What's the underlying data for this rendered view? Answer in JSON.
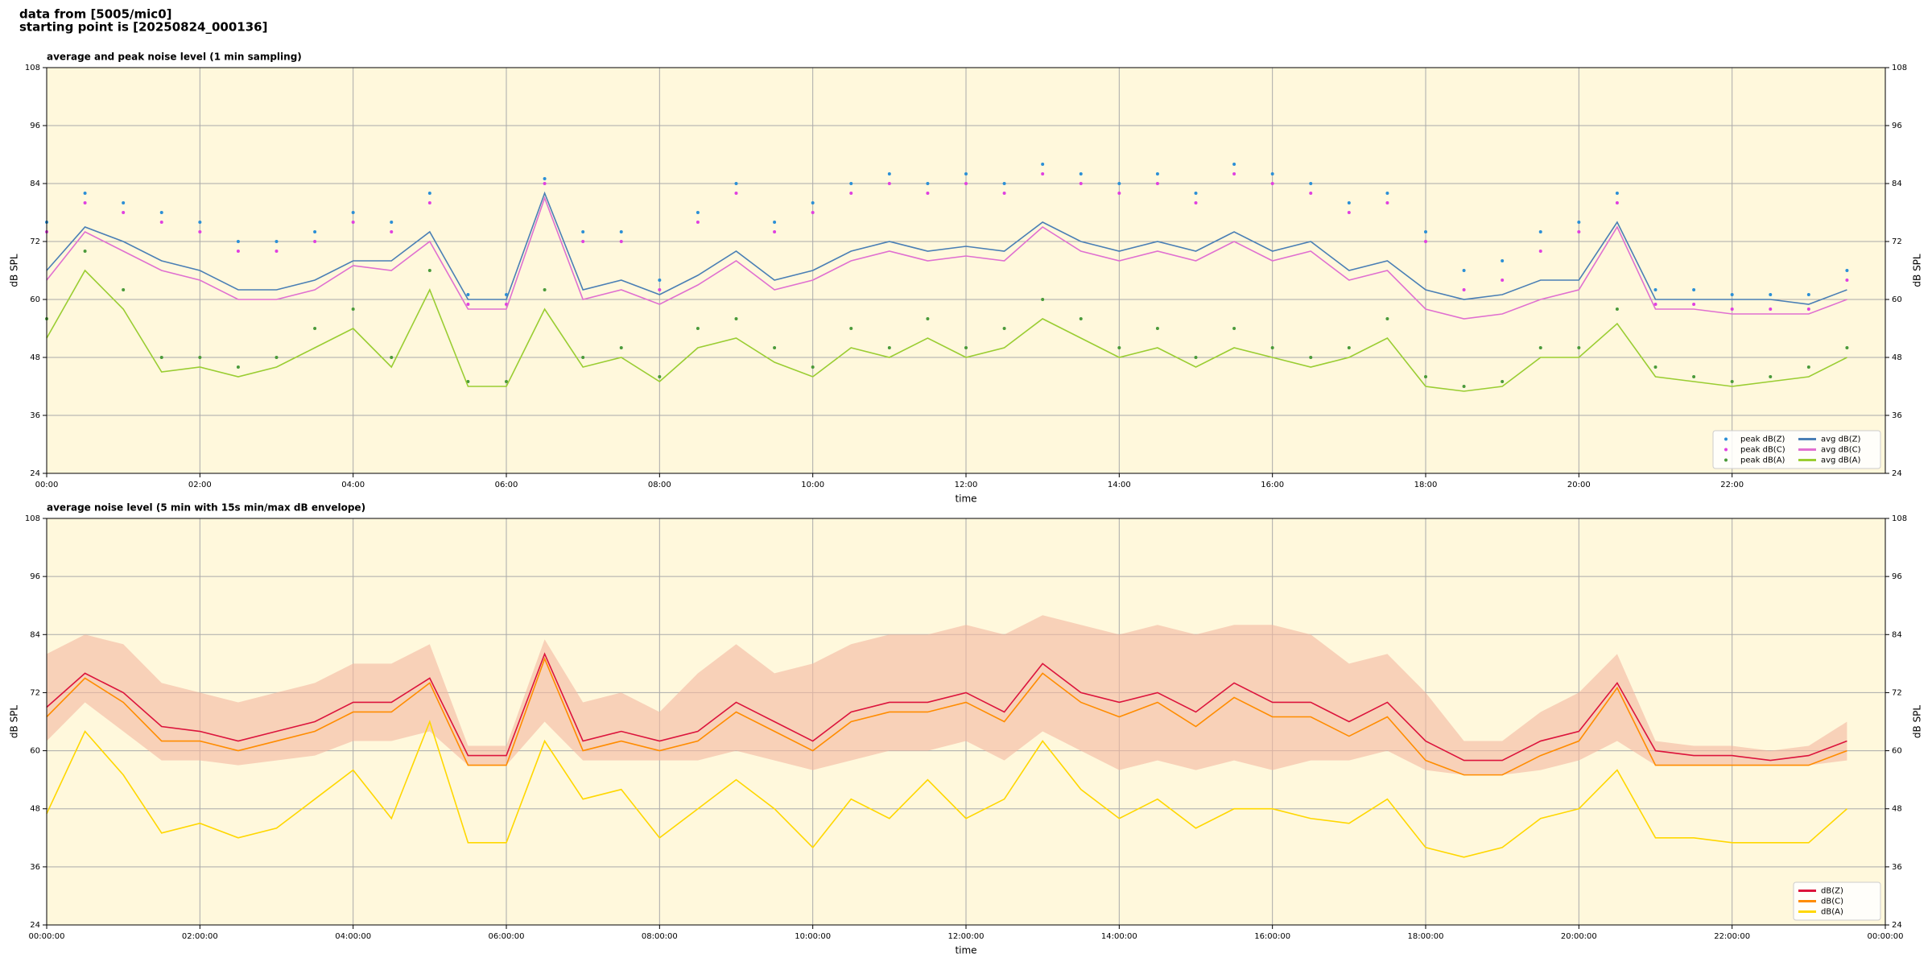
{
  "header": [
    "data from [5005/mic0]",
    "starting point is [20250824_000136]"
  ],
  "chart_data": [
    {
      "type": "line",
      "title": "average and peak noise level (1 min sampling)",
      "xlabel": "time",
      "ylabel": "dB SPL",
      "y2label": "dB SPL",
      "background": "#fff8dc",
      "grid": true,
      "legend": "lower right",
      "legend_columns": 2,
      "xlim": [
        0,
        24
      ],
      "ylim": [
        24,
        108
      ],
      "y2lim": [
        24,
        108
      ],
      "xticks": [
        {
          "value": 0,
          "label": "00:00"
        },
        {
          "value": 2,
          "label": "02:00"
        },
        {
          "value": 4,
          "label": "04:00"
        },
        {
          "value": 6,
          "label": "06:00"
        },
        {
          "value": 8,
          "label": "08:00"
        },
        {
          "value": 10,
          "label": "10:00"
        },
        {
          "value": 12,
          "label": "12:00"
        },
        {
          "value": 14,
          "label": "14:00"
        },
        {
          "value": 16,
          "label": "16:00"
        },
        {
          "value": 18,
          "label": "18:00"
        },
        {
          "value": 20,
          "label": "20:00"
        },
        {
          "value": 22,
          "label": "22:00"
        }
      ],
      "yticks": [
        24,
        36,
        48,
        60,
        72,
        84,
        96,
        108
      ],
      "y2ticks": [
        24,
        36,
        48,
        60,
        72,
        84,
        96,
        108
      ],
      "x": [
        0,
        0.5,
        1,
        1.5,
        2,
        2.5,
        3,
        3.5,
        4,
        4.5,
        5,
        5.5,
        6,
        6.5,
        7,
        7.5,
        8,
        8.5,
        9,
        9.5,
        10,
        10.5,
        11,
        11.5,
        12,
        12.5,
        13,
        13.5,
        14,
        14.5,
        15,
        15.5,
        16,
        16.5,
        17,
        17.5,
        18,
        18.5,
        19,
        19.5,
        20,
        20.5,
        21,
        21.5,
        22,
        22.5,
        23,
        23.5
      ],
      "series": [
        {
          "name": "peak dB(Z)",
          "style": "dots",
          "color": "#2b8fd6",
          "values": [
            76,
            82,
            80,
            78,
            76,
            72,
            72,
            74,
            78,
            76,
            82,
            61,
            61,
            85,
            74,
            74,
            64,
            78,
            84,
            76,
            80,
            84,
            86,
            84,
            86,
            84,
            88,
            86,
            84,
            86,
            82,
            88,
            86,
            84,
            80,
            82,
            74,
            66,
            68,
            74,
            76,
            82,
            62,
            62,
            61,
            61,
            61,
            66
          ]
        },
        {
          "name": "peak dB(C)",
          "style": "dots",
          "color": "#e040e0",
          "values": [
            74,
            80,
            78,
            76,
            74,
            70,
            70,
            72,
            76,
            74,
            80,
            59,
            59,
            84,
            72,
            72,
            62,
            76,
            82,
            74,
            78,
            82,
            84,
            82,
            84,
            82,
            86,
            84,
            82,
            84,
            80,
            86,
            84,
            82,
            78,
            80,
            72,
            62,
            64,
            70,
            74,
            80,
            59,
            59,
            58,
            58,
            58,
            64
          ]
        },
        {
          "name": "peak dB(A)",
          "style": "dots",
          "color": "#4a9a3a",
          "values": [
            56,
            70,
            62,
            48,
            48,
            46,
            48,
            54,
            58,
            48,
            66,
            43,
            43,
            62,
            48,
            50,
            44,
            54,
            56,
            50,
            46,
            54,
            50,
            56,
            50,
            54,
            60,
            56,
            50,
            54,
            48,
            54,
            50,
            48,
            50,
            56,
            44,
            42,
            43,
            50,
            50,
            58,
            46,
            44,
            43,
            44,
            46,
            50
          ]
        },
        {
          "name": "avg dB(Z)",
          "style": "line",
          "color": "#4a7fb5",
          "values": [
            66,
            75,
            72,
            68,
            66,
            62,
            62,
            64,
            68,
            68,
            74,
            60,
            60,
            82,
            62,
            64,
            61,
            65,
            70,
            64,
            66,
            70,
            72,
            70,
            71,
            70,
            76,
            72,
            70,
            72,
            70,
            74,
            70,
            72,
            66,
            68,
            62,
            60,
            61,
            64,
            64,
            76,
            60,
            60,
            60,
            60,
            59,
            62
          ]
        },
        {
          "name": "avg dB(C)",
          "style": "line",
          "color": "#e070d0",
          "values": [
            64,
            74,
            70,
            66,
            64,
            60,
            60,
            62,
            67,
            66,
            72,
            58,
            58,
            81,
            60,
            62,
            59,
            63,
            68,
            62,
            64,
            68,
            70,
            68,
            69,
            68,
            75,
            70,
            68,
            70,
            68,
            72,
            68,
            70,
            64,
            66,
            58,
            56,
            57,
            60,
            62,
            75,
            58,
            58,
            57,
            57,
            57,
            60
          ]
        },
        {
          "name": "avg dB(A)",
          "style": "line",
          "color": "#9acd32",
          "values": [
            52,
            66,
            58,
            45,
            46,
            44,
            46,
            50,
            54,
            46,
            62,
            42,
            42,
            58,
            46,
            48,
            43,
            50,
            52,
            47,
            44,
            50,
            48,
            52,
            48,
            50,
            56,
            52,
            48,
            50,
            46,
            50,
            48,
            46,
            48,
            52,
            42,
            41,
            42,
            48,
            48,
            55,
            44,
            43,
            42,
            43,
            44,
            48
          ]
        }
      ]
    },
    {
      "type": "line",
      "title": "average noise level (5 min with 15s min/max dB envelope)",
      "xlabel": "time",
      "ylabel": "dB SPL",
      "y2label": "dB SPL",
      "background": "#fff8dc",
      "grid": true,
      "legend": "lower right",
      "legend_columns": 1,
      "xlim": [
        0,
        24
      ],
      "ylim": [
        24,
        108
      ],
      "y2lim": [
        24,
        108
      ],
      "xticks": [
        {
          "value": 0,
          "label": "00:00:00"
        },
        {
          "value": 2,
          "label": "02:00:00"
        },
        {
          "value": 4,
          "label": "04:00:00"
        },
        {
          "value": 6,
          "label": "06:00:00"
        },
        {
          "value": 8,
          "label": "08:00:00"
        },
        {
          "value": 10,
          "label": "10:00:00"
        },
        {
          "value": 12,
          "label": "12:00:00"
        },
        {
          "value": 14,
          "label": "14:00:00"
        },
        {
          "value": 16,
          "label": "16:00:00"
        },
        {
          "value": 18,
          "label": "18:00:00"
        },
        {
          "value": 20,
          "label": "20:00:00"
        },
        {
          "value": 22,
          "label": "22:00:00"
        },
        {
          "value": 24,
          "label": "00:00:00"
        }
      ],
      "yticks": [
        24,
        36,
        48,
        60,
        72,
        84,
        96,
        108
      ],
      "y2ticks": [
        24,
        36,
        48,
        60,
        72,
        84,
        96,
        108
      ],
      "x": [
        0,
        0.5,
        1,
        1.5,
        2,
        2.5,
        3,
        3.5,
        4,
        4.5,
        5,
        5.5,
        6,
        6.5,
        7,
        7.5,
        8,
        8.5,
        9,
        9.5,
        10,
        10.5,
        11,
        11.5,
        12,
        12.5,
        13,
        13.5,
        14,
        14.5,
        15,
        15.5,
        16,
        16.5,
        17,
        17.5,
        18,
        18.5,
        19,
        19.5,
        20,
        20.5,
        21,
        21.5,
        22,
        22.5,
        23,
        23.5
      ],
      "envelope": {
        "color": "#f4b8a0",
        "upper": [
          80,
          84,
          82,
          74,
          72,
          70,
          72,
          74,
          78,
          78,
          82,
          61,
          61,
          83,
          70,
          72,
          68,
          76,
          82,
          76,
          78,
          82,
          84,
          84,
          86,
          84,
          88,
          86,
          84,
          86,
          84,
          86,
          86,
          84,
          78,
          80,
          72,
          62,
          62,
          68,
          72,
          80,
          62,
          61,
          61,
          60,
          61,
          66
        ],
        "lower": [
          62,
          70,
          64,
          58,
          58,
          57,
          58,
          59,
          62,
          62,
          64,
          57,
          57,
          66,
          58,
          58,
          58,
          58,
          60,
          58,
          56,
          58,
          60,
          60,
          62,
          58,
          64,
          60,
          56,
          58,
          56,
          58,
          56,
          58,
          58,
          60,
          56,
          55,
          55,
          56,
          58,
          62,
          57,
          57,
          57,
          57,
          57,
          58
        ]
      },
      "series": [
        {
          "name": "dB(Z)",
          "style": "line",
          "color": "#dc143c",
          "values": [
            69,
            76,
            72,
            65,
            64,
            62,
            64,
            66,
            70,
            70,
            75,
            59,
            59,
            80,
            62,
            64,
            62,
            64,
            70,
            66,
            62,
            68,
            70,
            70,
            72,
            68,
            78,
            72,
            70,
            72,
            68,
            74,
            70,
            70,
            66,
            70,
            62,
            58,
            58,
            62,
            64,
            74,
            60,
            59,
            59,
            58,
            59,
            62
          ]
        },
        {
          "name": "dB(C)",
          "style": "line",
          "color": "#ff8c00",
          "values": [
            67,
            75,
            70,
            62,
            62,
            60,
            62,
            64,
            68,
            68,
            74,
            57,
            57,
            79,
            60,
            62,
            60,
            62,
            68,
            64,
            60,
            66,
            68,
            68,
            70,
            66,
            76,
            70,
            67,
            70,
            65,
            71,
            67,
            67,
            63,
            67,
            58,
            55,
            55,
            59,
            62,
            73,
            57,
            57,
            57,
            57,
            57,
            60
          ]
        },
        {
          "name": "dB(A)",
          "style": "line",
          "color": "#ffd700",
          "values": [
            47,
            64,
            55,
            43,
            45,
            42,
            44,
            50,
            56,
            46,
            66,
            41,
            41,
            62,
            50,
            52,
            42,
            48,
            54,
            48,
            40,
            50,
            46,
            54,
            46,
            50,
            62,
            52,
            46,
            50,
            44,
            48,
            48,
            46,
            45,
            50,
            40,
            38,
            40,
            46,
            48,
            56,
            42,
            42,
            41,
            41,
            41,
            48
          ]
        }
      ]
    }
  ]
}
